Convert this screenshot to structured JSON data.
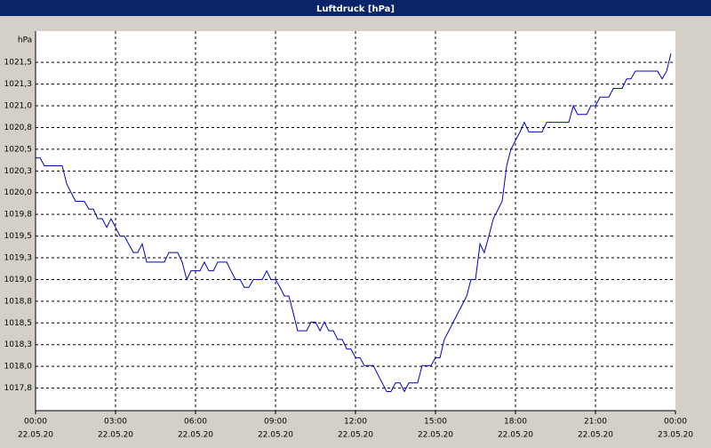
{
  "chart_data": {
    "type": "line",
    "title": "Luftdruck [hPa]",
    "ylabel": "hPa",
    "x": [
      0,
      0.17,
      0.33,
      1,
      1.17,
      1.5,
      1.83,
      2,
      2.17,
      2.33,
      2.5,
      2.67,
      2.83,
      3,
      3.17,
      3.33,
      3.67,
      3.83,
      4,
      4.17,
      4.83,
      5,
      5.33,
      5.5,
      5.67,
      5.83,
      6.17,
      6.33,
      6.5,
      6.67,
      6.83,
      7.17,
      7.33,
      7.5,
      7.67,
      7.83,
      8,
      8.17,
      8.5,
      8.67,
      8.83,
      9,
      9.17,
      9.33,
      9.5,
      9.67,
      9.83,
      10.17,
      10.33,
      10.5,
      10.67,
      10.83,
      11,
      11.17,
      11.33,
      11.5,
      11.67,
      11.83,
      12,
      12.17,
      12.33,
      12.67,
      12.83,
      13.17,
      13.33,
      13.5,
      13.67,
      13.83,
      14,
      14.33,
      14.5,
      14.83,
      15,
      15.17,
      15.33,
      15.5,
      16.17,
      16.33,
      16.5,
      16.67,
      16.83,
      17,
      17.17,
      17.5,
      17.67,
      17.83,
      18,
      18.17,
      18.33,
      18.5,
      19,
      19.17,
      20,
      20.17,
      20.33,
      20.67,
      20.83,
      21,
      21.17,
      21.5,
      21.67,
      22,
      22.17,
      22.33,
      22.5,
      23.33,
      23.5,
      23.67,
      23.83
    ],
    "series": [
      {
        "name": "Luftdruck",
        "color": "#0000c0",
        "values": [
          1020.4,
          1020.4,
          1020.31,
          1020.31,
          1020.1,
          1019.9,
          1019.9,
          1019.81,
          1019.81,
          1019.7,
          1019.7,
          1019.6,
          1019.7,
          1019.6,
          1019.5,
          1019.5,
          1019.31,
          1019.31,
          1019.41,
          1019.2,
          1019.2,
          1019.31,
          1019.31,
          1019.2,
          1019.0,
          1019.1,
          1019.1,
          1019.2,
          1019.1,
          1019.1,
          1019.2,
          1019.2,
          1019.1,
          1019.0,
          1019.0,
          1018.91,
          1018.91,
          1019.0,
          1019.0,
          1019.1,
          1019.0,
          1019.0,
          1018.91,
          1018.81,
          1018.81,
          1018.61,
          1018.41,
          1018.41,
          1018.51,
          1018.51,
          1018.41,
          1018.51,
          1018.41,
          1018.41,
          1018.31,
          1018.31,
          1018.2,
          1018.2,
          1018.1,
          1018.1,
          1018.01,
          1018.01,
          1017.91,
          1017.71,
          1017.71,
          1017.81,
          1017.81,
          1017.71,
          1017.81,
          1017.81,
          1018.01,
          1018.01,
          1018.1,
          1018.1,
          1018.31,
          1018.41,
          1018.81,
          1019.0,
          1019.0,
          1019.41,
          1019.31,
          1019.5,
          1019.7,
          1019.9,
          1020.31,
          1020.5,
          1020.6,
          1020.7,
          1020.81,
          1020.7,
          1020.7,
          1020.81,
          1020.81,
          1021.0,
          1020.9,
          1020.9,
          1021.0,
          1021.0,
          1021.1,
          1021.1,
          1021.2,
          1021.2,
          1021.31,
          1021.31,
          1021.4,
          1021.4,
          1021.31,
          1021.4,
          1021.6
        ]
      }
    ],
    "xlim": [
      0,
      24
    ],
    "ylim": [
      1017.49,
      1021.86
    ],
    "xticks": [
      {
        "value": 0,
        "label": "00:00"
      },
      {
        "value": 3,
        "label": "03:00"
      },
      {
        "value": 6,
        "label": "06:00"
      },
      {
        "value": 9,
        "label": "09:00"
      },
      {
        "value": 12,
        "label": "12:00"
      },
      {
        "value": 15,
        "label": "15:00"
      },
      {
        "value": 18,
        "label": "18:00"
      },
      {
        "value": 21,
        "label": "21:00"
      },
      {
        "value": 24,
        "label": "00:00"
      }
    ],
    "xtick_dates": [
      "22.05.20",
      "22.05.20",
      "22.05.20",
      "22.05.20",
      "22.05.20",
      "22.05.20",
      "22.05.20",
      "22.05.20",
      "23.05.20"
    ],
    "yticks": [
      {
        "value": 1017.75,
        "label": "1017,8"
      },
      {
        "value": 1018.0,
        "label": "1018,0"
      },
      {
        "value": 1018.25,
        "label": "1018,3"
      },
      {
        "value": 1018.5,
        "label": "1018,5"
      },
      {
        "value": 1018.75,
        "label": "1018,8"
      },
      {
        "value": 1019.0,
        "label": "1019,0"
      },
      {
        "value": 1019.25,
        "label": "1019,3"
      },
      {
        "value": 1019.5,
        "label": "1019,5"
      },
      {
        "value": 1019.75,
        "label": "1019,8"
      },
      {
        "value": 1020.0,
        "label": "1020,0"
      },
      {
        "value": 1020.25,
        "label": "1020,3"
      },
      {
        "value": 1020.5,
        "label": "1020,5"
      },
      {
        "value": 1020.75,
        "label": "1020,8"
      },
      {
        "value": 1021.0,
        "label": "1021,0"
      },
      {
        "value": 1021.25,
        "label": "1021,3"
      },
      {
        "value": 1021.5,
        "label": "1021,5"
      }
    ],
    "grid": true
  }
}
